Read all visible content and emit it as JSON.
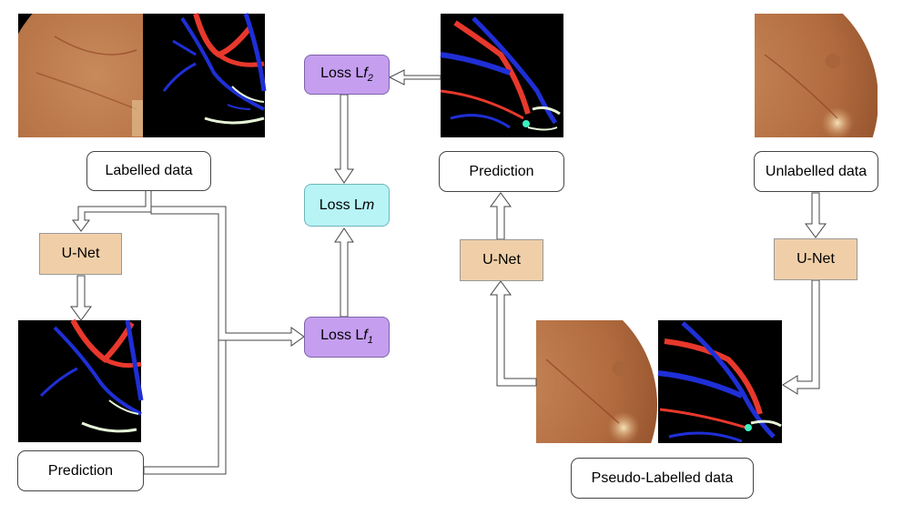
{
  "colors": {
    "unet_fill": "#f0cfa8",
    "loss_f_fill": "#c59ef0",
    "loss_m_fill": "#b8f3f5",
    "artery": "#e8382c",
    "vein": "#1f2fd6",
    "uncertain": "#e6f5d8",
    "fundus": "#c0784a"
  },
  "left": {
    "labelled_data": "Labelled data",
    "unet": "U-Net",
    "prediction": "Prediction"
  },
  "losses": {
    "lf2_prefix": "Loss L",
    "lf2_var": "f",
    "lf2_sub": "2",
    "lm_prefix": "Loss L",
    "lm_var": "m",
    "lf1_prefix": "Loss L",
    "lf1_var": "f",
    "lf1_sub": "1"
  },
  "right": {
    "prediction": "Prediction",
    "unet_middle": "U-Net",
    "unet_right": "U-Net",
    "unlabelled_data": "Unlabelled data",
    "pseudo_labelled_data": "Pseudo-Labelled data"
  }
}
